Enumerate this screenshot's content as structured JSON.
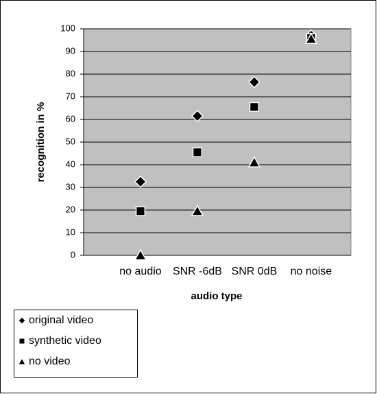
{
  "chart_data": {
    "type": "scatter",
    "x_label": "audio type",
    "y_label": "recognition in %",
    "categories": [
      "no audio",
      "SNR -6dB",
      "SNR 0dB",
      "no noise"
    ],
    "series": [
      {
        "name": "original video",
        "marker": "diamond",
        "color": "#000000",
        "values": [
          32.5,
          61.5,
          76.5,
          97
        ]
      },
      {
        "name": "synthetic  video",
        "marker": "square",
        "color": "#000000",
        "values": [
          19.5,
          45.5,
          65.5,
          96
        ]
      },
      {
        "name": "no video",
        "marker": "triangle",
        "color": "#000000",
        "values": [
          0,
          19.5,
          41,
          95.5
        ]
      }
    ],
    "ylim": [
      0,
      100
    ],
    "yticks": [
      0,
      10,
      20,
      30,
      40,
      50,
      60,
      70,
      80,
      90,
      100
    ],
    "grid": true,
    "plot_background": "#c0c0c0"
  }
}
